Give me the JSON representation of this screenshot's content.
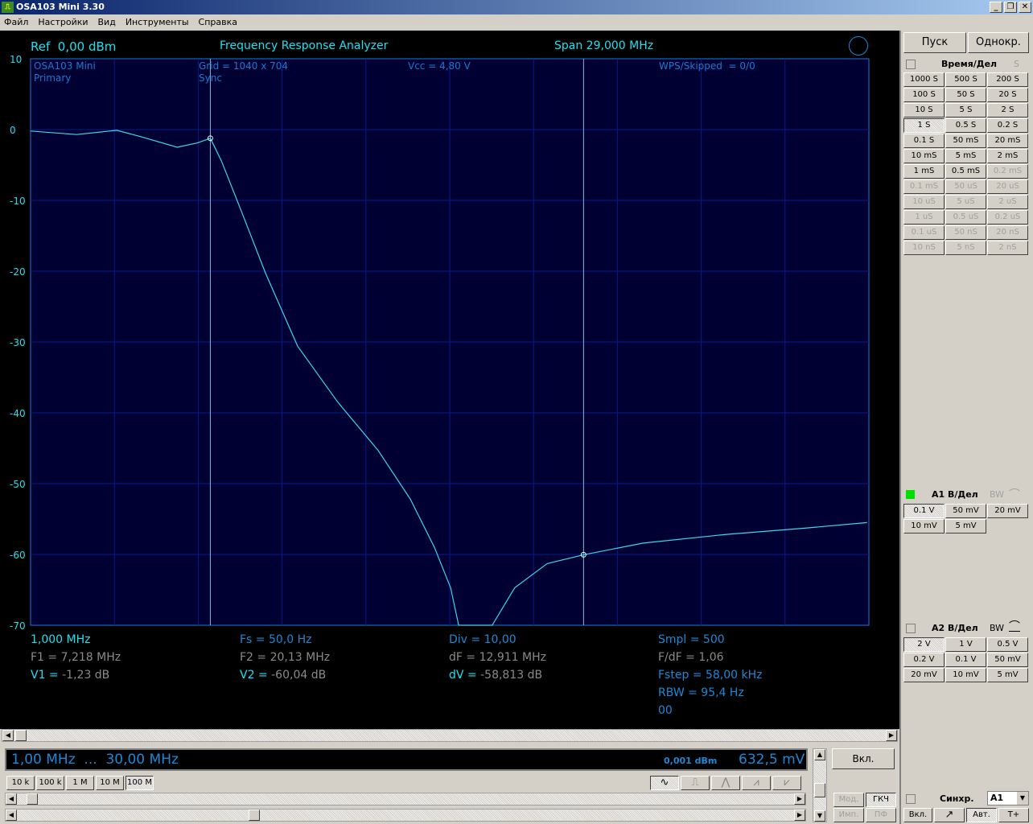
{
  "window": {
    "title": "OSA103 Mini 3.30",
    "controls": [
      "_",
      "❐",
      "✕"
    ]
  },
  "menu": [
    "Файл",
    "Настройки",
    "Вид",
    "Инструменты",
    "Справка"
  ],
  "scope": {
    "ref": "Ref  0,00 dBm",
    "mode": "Frequency Response Analyzer",
    "span": "Span 29,000 MHz",
    "overlay": {
      "device": "OSA103 Mini",
      "channel": "Primary",
      "grid": "Grid = 1040 x 704",
      "sync": "Sync",
      "vcc": "Vcc = 4,80 V",
      "wps": "WPS/Skipped  = 0/0"
    },
    "readouts": {
      "start": "1,000 MHz",
      "fs": "Fs = 50,0 Hz",
      "div": "Div = 10,00",
      "smpl": "Smpl = 500",
      "f1": "F1 = 7,218 MHz",
      "f2": "F2 = 20,13 MHz",
      "df": "dF = 12,911 MHz",
      "fdf": "F/dF = 1,06",
      "v1_label": "V1 = ",
      "v1": "-1,23 dB",
      "v2_label": "V2 = ",
      "v2": "-60,04 dB",
      "dv_label": "dV = ",
      "dv": "-58,813 dB",
      "fstep": "Fstep = 58,00 kHz",
      "rbw": "RBW = 95,4 Hz",
      "code": "00"
    },
    "colors": {
      "trace": "#3ad8e8",
      "grid": "#0a1a8a",
      "background": "#000033"
    }
  },
  "chart_data": {
    "type": "line",
    "xlim": [
      1,
      30
    ],
    "ylim": [
      -70,
      10
    ],
    "yticks": [
      "10",
      "0",
      "-10",
      "-20",
      "-30",
      "-40",
      "-50",
      "-60",
      "-70"
    ],
    "grid": true,
    "cursors": [
      {
        "x": 7.218,
        "y": -1.23
      },
      {
        "x": 20.13,
        "y": -60.04
      }
    ],
    "x": [
      1.0,
      2.59,
      3.98,
      4.81,
      6.07,
      6.76,
      7.22,
      7.6,
      8.29,
      9.13,
      10.24,
      11.63,
      13.02,
      14.14,
      14.97,
      15.53,
      15.81,
      16.97,
      17.75,
      18.87,
      20.13,
      22.2,
      24.99,
      27.77,
      29.94
    ],
    "y": [
      -0.2,
      -0.7,
      -0.1,
      -1.0,
      -2.5,
      -1.9,
      -1.23,
      -4.4,
      -11.5,
      -20.3,
      -30.6,
      -38.5,
      -45.3,
      -52.2,
      -59.0,
      -64.7,
      -70,
      -70,
      -64.7,
      -61.3,
      -60.04,
      -58.4,
      -57.2,
      -56.3,
      -55.5
    ]
  },
  "freqbar": {
    "range": "1,00 MHz  ...  30,00 MHz",
    "level_dbm": "0,001 dBm",
    "level_mv": "632,5 mV",
    "on": "Вкл."
  },
  "decades": [
    "10 k",
    "100 k",
    "1 M",
    "10 M",
    "100 M"
  ],
  "waveforms": [
    "sine",
    "square",
    "triangle",
    "saw-up",
    "saw-down"
  ],
  "gen_modes": [
    "Мод.",
    "ГКЧ",
    "Имп.",
    "ПФ"
  ],
  "right": {
    "start": "Пуск",
    "single": "Однокр.",
    "time_label": "Время/Дел",
    "time_unit": "S",
    "time": [
      "1000 S",
      "500 S",
      "200 S",
      "100 S",
      "50 S",
      "20 S",
      "10 S",
      "5 S",
      "2 S",
      "1 S",
      "0.5 S",
      "0.2 S",
      "0.1 S",
      "50 mS",
      "20 mS",
      "10 mS",
      "5 mS",
      "2 mS",
      "1 mS",
      "0.5 mS",
      "0.2 mS",
      "0.1 mS",
      "50 uS",
      "20 uS",
      "10 uS",
      "5 uS",
      "2 uS",
      "1 uS",
      "0.5 uS",
      "0.2 uS",
      "0.1 uS",
      "50 nS",
      "20 nS",
      "10 nS",
      "5 nS",
      "2 nS"
    ],
    "a1_label": "A1 В/Дел",
    "bw": "BW",
    "a1": [
      "0.1 V",
      "50 mV",
      "20 mV",
      "10 mV",
      "5 mV"
    ],
    "a2_label": "A2 В/Дел",
    "a2": [
      "2 V",
      "1 V",
      "0.5 V",
      "0.2 V",
      "0.1 V",
      "50 mV",
      "20 mV",
      "10 mV",
      "5 mV"
    ],
    "sync_label": "Синхр.",
    "sync_src": "A1",
    "sync_btns": [
      "Вкл.",
      "Авт.",
      "T+"
    ],
    "a1_color": "#00e000"
  }
}
